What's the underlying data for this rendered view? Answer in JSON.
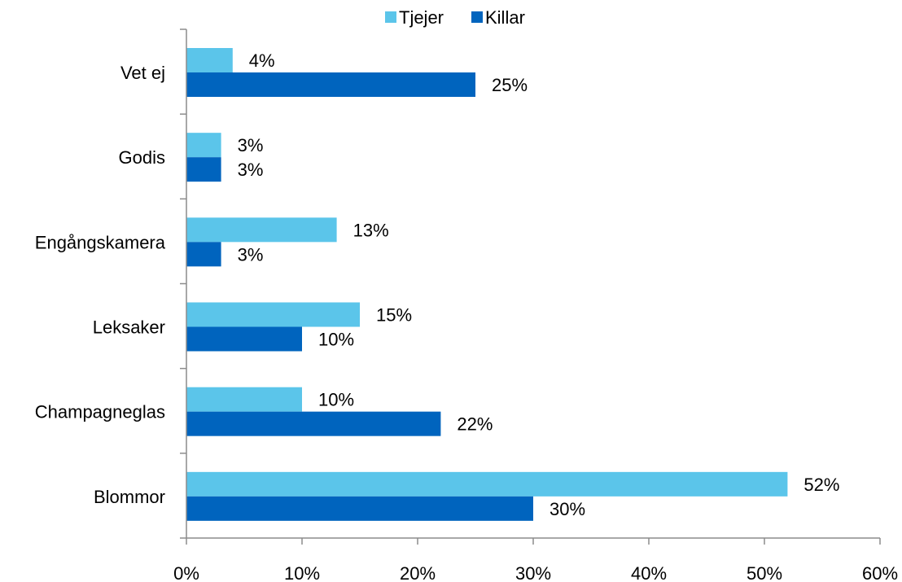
{
  "chart_data": {
    "type": "bar",
    "orientation": "horizontal",
    "categories": [
      "Vet ej",
      "Godis",
      "Engångskamera",
      "Leksaker",
      "Champagneglas",
      "Blommor"
    ],
    "series": [
      {
        "name": "Tjejer",
        "color": "#5bc5ea",
        "values": [
          4,
          3,
          13,
          15,
          10,
          52
        ],
        "labels": [
          "4%",
          "3%",
          "13%",
          "15%",
          "10%",
          "52%"
        ]
      },
      {
        "name": "Killar",
        "color": "#0064be",
        "values": [
          25,
          3,
          3,
          10,
          22,
          30
        ],
        "labels": [
          "25%",
          "3%",
          "3%",
          "10%",
          "22%",
          "30%"
        ]
      }
    ],
    "x_ticks": [
      "0%",
      "10%",
      "20%",
      "30%",
      "40%",
      "50%",
      "60%"
    ],
    "xlim": [
      0,
      60
    ],
    "unit": "%",
    "legend_position": "top",
    "grid": false
  }
}
